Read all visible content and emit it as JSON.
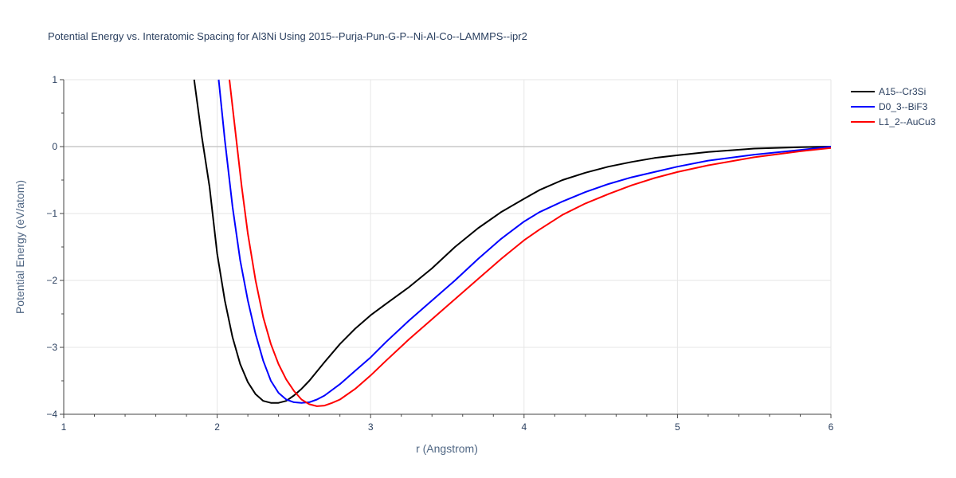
{
  "chart_data": {
    "type": "line",
    "title": "Potential Energy vs. Interatomic Spacing for Al3Ni Using 2015--Purja-Pun-G-P--Ni-Al-Co--LAMMPS--ipr2",
    "xlabel": "r (Angstrom)",
    "ylabel": "Potential Energy (eV/atom)",
    "xlim": [
      1,
      6
    ],
    "ylim": [
      -4,
      1
    ],
    "xticks": [
      1,
      2,
      3,
      4,
      5,
      6
    ],
    "xtick_labels": [
      "1",
      "2",
      "3",
      "4",
      "5",
      "6"
    ],
    "yticks": [
      1,
      0,
      -1,
      -2,
      -3,
      -4
    ],
    "ytick_labels": [
      "1",
      "0",
      "−1",
      "−2",
      "−3",
      "−4"
    ],
    "grid": true,
    "legend_position": "top-right",
    "series": [
      {
        "name": "A15--Cr3Si",
        "color": "#000000",
        "x": [
          1.85,
          1.9,
          1.95,
          2.0,
          2.05,
          2.1,
          2.15,
          2.2,
          2.25,
          2.3,
          2.35,
          2.4,
          2.45,
          2.5,
          2.55,
          2.6,
          2.7,
          2.8,
          2.9,
          3.0,
          3.1,
          3.25,
          3.4,
          3.55,
          3.7,
          3.85,
          4.0,
          4.1,
          4.25,
          4.4,
          4.55,
          4.7,
          4.85,
          5.0,
          5.2,
          5.5,
          5.8,
          6.0
        ],
        "y": [
          1.0,
          0.15,
          -0.6,
          -1.6,
          -2.3,
          -2.85,
          -3.25,
          -3.52,
          -3.7,
          -3.8,
          -3.83,
          -3.83,
          -3.8,
          -3.72,
          -3.62,
          -3.5,
          -3.22,
          -2.95,
          -2.72,
          -2.52,
          -2.35,
          -2.1,
          -1.82,
          -1.5,
          -1.22,
          -0.98,
          -0.78,
          -0.65,
          -0.5,
          -0.39,
          -0.3,
          -0.23,
          -0.17,
          -0.13,
          -0.08,
          -0.03,
          -0.01,
          0.0
        ]
      },
      {
        "name": "D0_3--BiF3",
        "color": "#0000ff",
        "x": [
          2.01,
          2.05,
          2.1,
          2.15,
          2.2,
          2.25,
          2.3,
          2.35,
          2.4,
          2.45,
          2.5,
          2.55,
          2.6,
          2.65,
          2.7,
          2.8,
          2.9,
          3.0,
          3.1,
          3.25,
          3.4,
          3.55,
          3.7,
          3.85,
          4.0,
          4.1,
          4.25,
          4.4,
          4.55,
          4.7,
          4.85,
          5.0,
          5.2,
          5.5,
          5.8,
          6.0
        ],
        "y": [
          1.0,
          0.1,
          -0.9,
          -1.7,
          -2.3,
          -2.8,
          -3.2,
          -3.5,
          -3.68,
          -3.78,
          -3.82,
          -3.83,
          -3.82,
          -3.78,
          -3.72,
          -3.55,
          -3.35,
          -3.15,
          -2.92,
          -2.6,
          -2.3,
          -2.0,
          -1.68,
          -1.38,
          -1.12,
          -0.98,
          -0.82,
          -0.68,
          -0.56,
          -0.46,
          -0.38,
          -0.3,
          -0.21,
          -0.12,
          -0.05,
          0.0
        ]
      },
      {
        "name": "L1_2--AuCu3",
        "color": "#ff0000",
        "x": [
          2.08,
          2.12,
          2.16,
          2.2,
          2.25,
          2.3,
          2.35,
          2.4,
          2.45,
          2.5,
          2.55,
          2.6,
          2.65,
          2.7,
          2.75,
          2.8,
          2.9,
          3.0,
          3.1,
          3.25,
          3.4,
          3.55,
          3.7,
          3.85,
          4.0,
          4.1,
          4.25,
          4.4,
          4.55,
          4.7,
          4.85,
          5.0,
          5.2,
          5.5,
          5.8,
          6.0
        ],
        "y": [
          1.0,
          0.2,
          -0.6,
          -1.3,
          -2.0,
          -2.55,
          -2.95,
          -3.25,
          -3.48,
          -3.65,
          -3.78,
          -3.85,
          -3.88,
          -3.87,
          -3.83,
          -3.78,
          -3.62,
          -3.42,
          -3.2,
          -2.88,
          -2.58,
          -2.28,
          -1.98,
          -1.68,
          -1.4,
          -1.24,
          -1.02,
          -0.85,
          -0.71,
          -0.58,
          -0.47,
          -0.38,
          -0.28,
          -0.16,
          -0.07,
          -0.02
        ]
      }
    ]
  }
}
